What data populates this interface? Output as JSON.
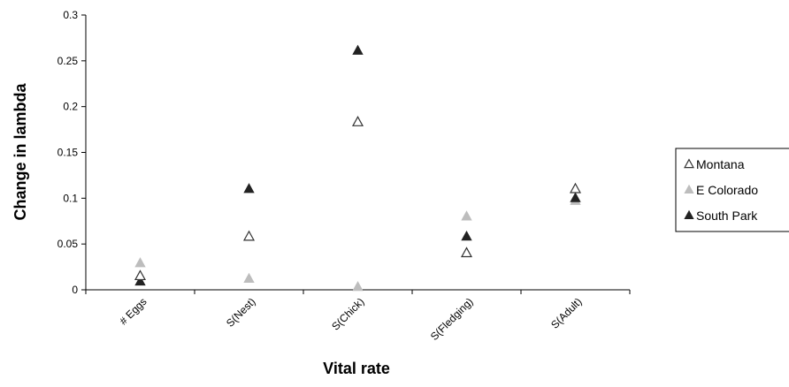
{
  "chart_data": {
    "type": "scatter",
    "title": "",
    "xlabel": "Vital rate",
    "ylabel": "Change in lambda",
    "categories": [
      "# Eggs",
      "S(Nest)",
      "S(Chick)",
      "S(Fledging)",
      "S(Adult)"
    ],
    "ylim": [
      0,
      0.3
    ],
    "yticks": [
      "0",
      "0.05",
      "0.1",
      "0.15",
      "0.2",
      "0.25",
      "0.3"
    ],
    "grid": false,
    "legend_position": "right",
    "series": [
      {
        "name": "Montana",
        "marker": "open-triangle",
        "color": "#333333",
        "values": [
          0.015,
          0.058,
          0.183,
          0.04,
          0.11
        ]
      },
      {
        "name": "E Colorado",
        "marker": "filled-triangle",
        "color": "#bdbdbd",
        "values": [
          0.029,
          0.012,
          0.003,
          0.08,
          0.097
        ]
      },
      {
        "name": "South Park",
        "marker": "filled-triangle",
        "color": "#222222",
        "values": [
          0.009,
          0.11,
          0.261,
          0.058,
          0.1
        ]
      }
    ]
  }
}
